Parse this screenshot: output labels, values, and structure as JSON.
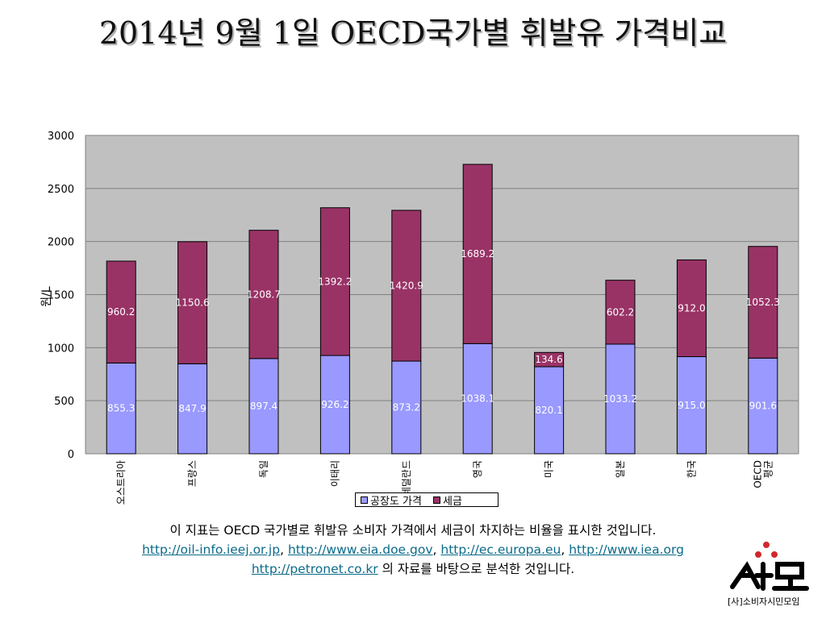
{
  "title": "2014년 9월 1일 OECD국가별 휘발유 가격비교",
  "chart_data": {
    "type": "bar",
    "stacked": true,
    "categories": [
      "오스트리아",
      "프랑스",
      "독일",
      "이태리",
      "네덜란드",
      "영국",
      "미국",
      "일본",
      "한국",
      "OECD 평균"
    ],
    "series": [
      {
        "name": "공장도 가격",
        "color": "#9999ff",
        "values": [
          855.3,
          847.9,
          897.4,
          926.2,
          873.2,
          1038.1,
          820.1,
          1033.2,
          915.0,
          901.6
        ]
      },
      {
        "name": "세금",
        "color": "#993366",
        "values": [
          960.2,
          1150.6,
          1208.7,
          1392.2,
          1420.9,
          1689.2,
          134.6,
          602.2,
          912.0,
          1052.3
        ]
      }
    ],
    "ylabel": "원/L",
    "ylim": [
      0,
      3000
    ],
    "yticks": [
      0,
      500,
      1000,
      1500,
      2000,
      2500,
      3000
    ],
    "grid": true,
    "plot_background": "#c0c0c0",
    "legend_position": "bottom"
  },
  "footer": {
    "line1": "이 지표는 OECD 국가별로 휘발유 소비자 가격에서 세금이 차지하는 비율을 표시한 것입니다.",
    "link1": "http://oil-info.ieej.or.jp",
    "sep1": ", ",
    "link2": "http://www.eia.doe.gov",
    "sep2": ", ",
    "link3": "http://ec.europa.eu",
    "sep3": ", ",
    "link4": "http://www.iea.org",
    "link5": "http://petronet.co.kr",
    "tail": " 의 자료를 바탕으로 분석한 것입니다."
  },
  "logo": {
    "text": "[사]소비자시민모임"
  }
}
